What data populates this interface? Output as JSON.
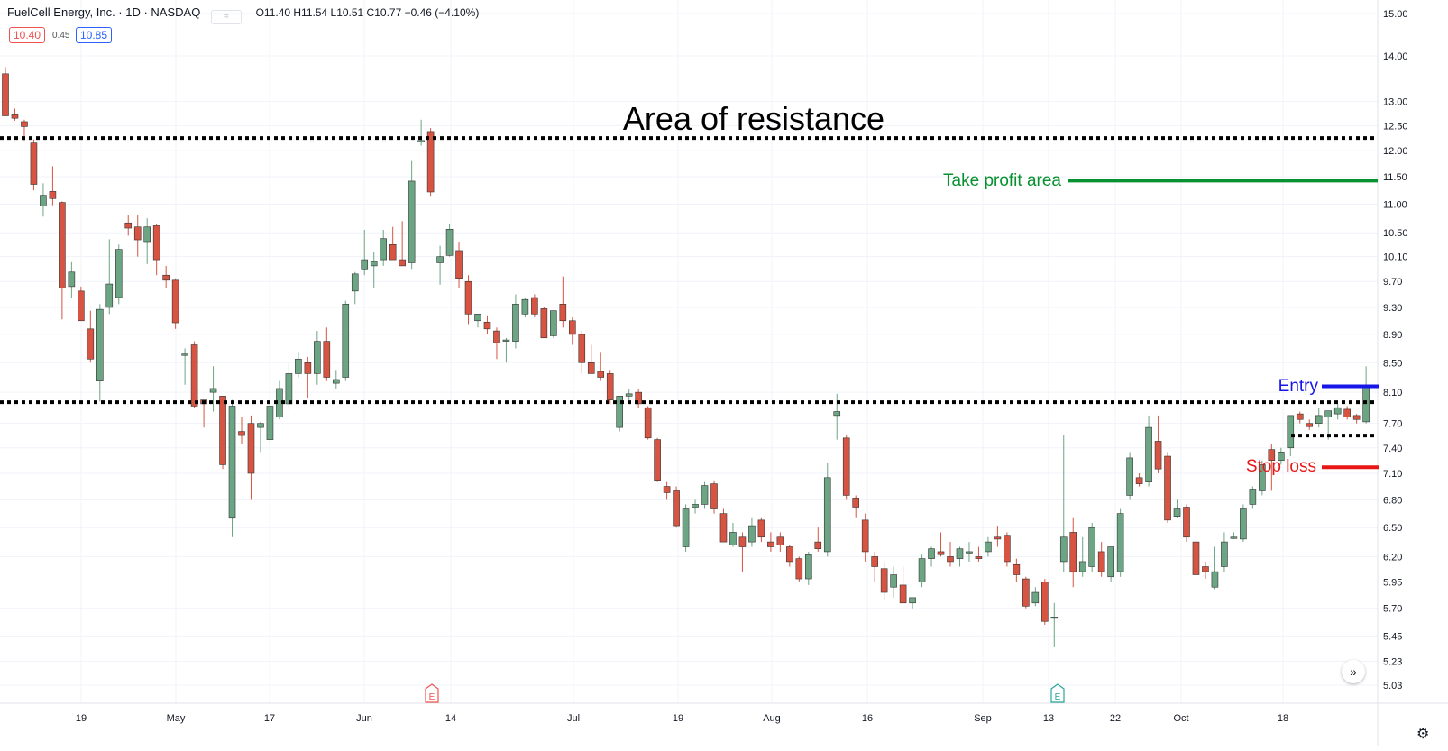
{
  "header": {
    "symbol_title": "FuelCell Energy, Inc. · 1D · NASDAQ",
    "ohlc_text": "O11.40 H11.54 L10.51 C10.77 −0.46 (−4.10%)",
    "bid": "10.40",
    "spread": "0.45",
    "ask": "10.85"
  },
  "annotations": {
    "resistance_label": "Area of resistance",
    "take_profit_label": "Take profit area",
    "entry_label": "Entry",
    "stop_loss_label": "Stop loss"
  },
  "events": {
    "earnings_letter_1": "E",
    "earnings_letter_2": "E"
  },
  "controls": {
    "scroll_glyph": "»",
    "settings_glyph": "⚙"
  },
  "colors": {
    "up": "#6ba583",
    "down": "#d75442",
    "resistance": "#000000",
    "take_profit": "#089130",
    "entry": "#1616e8",
    "stop_loss": "#e81616",
    "grid": "#f0f3fa",
    "earnings_1": "#ef5350",
    "earnings_2": "#26a69a"
  },
  "chart_data": {
    "type": "candlestick",
    "price_axis": {
      "scale": "log",
      "ticks": [
        "15.00",
        "14.00",
        "13.00",
        "12.50",
        "12.00",
        "11.50",
        "11.00",
        "10.50",
        "10.10",
        "9.70",
        "9.30",
        "8.90",
        "8.50",
        "8.10",
        "7.70",
        "7.40",
        "7.10",
        "6.80",
        "6.50",
        "6.20",
        "5.95",
        "5.70",
        "5.45",
        "5.23",
        "5.03"
      ]
    },
    "time_axis_labels": [
      "19",
      "May",
      "17",
      "Jun",
      "14",
      "Jul",
      "19",
      "Aug",
      "16",
      "Sep",
      "13",
      "22",
      "Oct",
      "18"
    ],
    "candles": [
      {
        "o": 13.6,
        "h": 13.75,
        "l": 12.7,
        "c": 12.7
      },
      {
        "o": 12.72,
        "h": 12.85,
        "l": 12.6,
        "c": 12.65
      },
      {
        "o": 12.58,
        "h": 12.62,
        "l": 12.2,
        "c": 12.48
      },
      {
        "o": 12.15,
        "h": 12.22,
        "l": 11.25,
        "c": 11.36
      },
      {
        "o": 10.97,
        "h": 11.38,
        "l": 10.78,
        "c": 11.16
      },
      {
        "o": 11.23,
        "h": 11.7,
        "l": 10.98,
        "c": 11.1
      },
      {
        "o": 11.03,
        "h": 11.05,
        "l": 9.12,
        "c": 9.6
      },
      {
        "o": 9.62,
        "h": 10.01,
        "l": 9.45,
        "c": 9.85
      },
      {
        "o": 9.55,
        "h": 9.62,
        "l": 9.1,
        "c": 9.1
      },
      {
        "o": 8.98,
        "h": 9.25,
        "l": 8.5,
        "c": 8.55
      },
      {
        "o": 8.25,
        "h": 9.35,
        "l": 7.98,
        "c": 9.27
      },
      {
        "o": 9.3,
        "h": 10.39,
        "l": 9.2,
        "c": 9.66
      },
      {
        "o": 9.45,
        "h": 10.3,
        "l": 9.35,
        "c": 10.22
      },
      {
        "o": 10.67,
        "h": 10.8,
        "l": 10.45,
        "c": 10.58
      },
      {
        "o": 10.6,
        "h": 10.8,
        "l": 10.1,
        "c": 10.38
      },
      {
        "o": 10.35,
        "h": 10.75,
        "l": 9.98,
        "c": 10.6
      },
      {
        "o": 10.62,
        "h": 10.65,
        "l": 9.8,
        "c": 10.05
      },
      {
        "o": 9.8,
        "h": 9.95,
        "l": 9.6,
        "c": 9.72
      },
      {
        "o": 9.72,
        "h": 9.75,
        "l": 8.98,
        "c": 9.07
      },
      {
        "o": 8.62,
        "h": 8.7,
        "l": 8.2,
        "c": 8.62
      },
      {
        "o": 8.75,
        "h": 8.8,
        "l": 7.9,
        "c": 7.92
      },
      {
        "o": 8.0,
        "h": 8.0,
        "l": 7.65,
        "c": 7.95
      },
      {
        "o": 8.1,
        "h": 8.45,
        "l": 7.85,
        "c": 8.15
      },
      {
        "o": 8.05,
        "h": 8.05,
        "l": 7.15,
        "c": 7.2
      },
      {
        "o": 6.6,
        "h": 8.0,
        "l": 6.4,
        "c": 7.92
      },
      {
        "o": 7.6,
        "h": 7.78,
        "l": 7.45,
        "c": 7.55
      },
      {
        "o": 7.7,
        "h": 7.8,
        "l": 6.8,
        "c": 7.1
      },
      {
        "o": 7.65,
        "h": 7.72,
        "l": 7.35,
        "c": 7.7
      },
      {
        "o": 7.5,
        "h": 7.98,
        "l": 7.45,
        "c": 7.92
      },
      {
        "o": 7.78,
        "h": 8.25,
        "l": 7.75,
        "c": 8.15
      },
      {
        "o": 7.95,
        "h": 8.5,
        "l": 7.88,
        "c": 8.35
      },
      {
        "o": 8.35,
        "h": 8.65,
        "l": 8.3,
        "c": 8.55
      },
      {
        "o": 8.5,
        "h": 8.58,
        "l": 8.02,
        "c": 8.35
      },
      {
        "o": 8.35,
        "h": 8.95,
        "l": 8.2,
        "c": 8.8
      },
      {
        "o": 8.8,
        "h": 9.0,
        "l": 8.25,
        "c": 8.3
      },
      {
        "o": 8.22,
        "h": 8.4,
        "l": 8.15,
        "c": 8.27
      },
      {
        "o": 8.3,
        "h": 9.4,
        "l": 8.25,
        "c": 9.35
      },
      {
        "o": 9.55,
        "h": 9.85,
        "l": 9.35,
        "c": 9.82
      },
      {
        "o": 9.9,
        "h": 10.55,
        "l": 9.8,
        "c": 10.05
      },
      {
        "o": 9.95,
        "h": 10.18,
        "l": 9.6,
        "c": 10.02
      },
      {
        "o": 10.05,
        "h": 10.55,
        "l": 9.95,
        "c": 10.4
      },
      {
        "o": 10.3,
        "h": 10.6,
        "l": 10.1,
        "c": 10.05
      },
      {
        "o": 10.05,
        "h": 10.7,
        "l": 9.95,
        "c": 9.95
      },
      {
        "o": 10.0,
        "h": 11.8,
        "l": 9.9,
        "c": 11.42
      },
      {
        "o": 12.2,
        "h": 12.62,
        "l": 12.1,
        "c": 12.2
      },
      {
        "o": 12.38,
        "h": 12.45,
        "l": 11.15,
        "c": 11.22
      },
      {
        "o": 10.0,
        "h": 10.28,
        "l": 9.65,
        "c": 10.1
      },
      {
        "o": 10.12,
        "h": 10.65,
        "l": 10.1,
        "c": 10.56
      },
      {
        "o": 10.2,
        "h": 10.35,
        "l": 9.6,
        "c": 9.75
      },
      {
        "o": 9.7,
        "h": 9.8,
        "l": 9.05,
        "c": 9.2
      },
      {
        "o": 9.1,
        "h": 9.2,
        "l": 9.0,
        "c": 9.2
      },
      {
        "o": 9.08,
        "h": 9.18,
        "l": 8.9,
        "c": 8.98
      },
      {
        "o": 8.95,
        "h": 9.0,
        "l": 8.55,
        "c": 8.78
      },
      {
        "o": 8.82,
        "h": 8.85,
        "l": 8.5,
        "c": 8.82
      },
      {
        "o": 8.8,
        "h": 9.5,
        "l": 8.7,
        "c": 9.35
      },
      {
        "o": 9.2,
        "h": 9.45,
        "l": 9.15,
        "c": 9.42
      },
      {
        "o": 9.45,
        "h": 9.5,
        "l": 9.15,
        "c": 9.2
      },
      {
        "o": 9.28,
        "h": 9.3,
        "l": 8.85,
        "c": 8.85
      },
      {
        "o": 8.88,
        "h": 9.25,
        "l": 8.85,
        "c": 9.25
      },
      {
        "o": 9.35,
        "h": 9.78,
        "l": 9.0,
        "c": 9.1
      },
      {
        "o": 9.1,
        "h": 9.15,
        "l": 8.75,
        "c": 8.9
      },
      {
        "o": 8.9,
        "h": 8.95,
        "l": 8.35,
        "c": 8.5
      },
      {
        "o": 8.5,
        "h": 8.75,
        "l": 8.35,
        "c": 8.35
      },
      {
        "o": 8.38,
        "h": 8.65,
        "l": 8.25,
        "c": 8.3
      },
      {
        "o": 8.35,
        "h": 8.4,
        "l": 7.95,
        "c": 8.0
      },
      {
        "o": 7.65,
        "h": 8.05,
        "l": 7.6,
        "c": 8.05
      },
      {
        "o": 8.05,
        "h": 8.15,
        "l": 7.95,
        "c": 8.08
      },
      {
        "o": 8.1,
        "h": 8.15,
        "l": 7.9,
        "c": 7.95
      },
      {
        "o": 7.9,
        "h": 7.92,
        "l": 7.5,
        "c": 7.52
      },
      {
        "o": 7.5,
        "h": 7.52,
        "l": 7.0,
        "c": 7.02
      },
      {
        "o": 6.95,
        "h": 7.0,
        "l": 6.8,
        "c": 6.88
      },
      {
        "o": 6.9,
        "h": 6.95,
        "l": 6.5,
        "c": 6.52
      },
      {
        "o": 6.3,
        "h": 6.75,
        "l": 6.25,
        "c": 6.7
      },
      {
        "o": 6.72,
        "h": 6.8,
        "l": 6.65,
        "c": 6.75
      },
      {
        "o": 6.75,
        "h": 7.0,
        "l": 6.7,
        "c": 6.96
      },
      {
        "o": 6.98,
        "h": 7.02,
        "l": 6.65,
        "c": 6.7
      },
      {
        "o": 6.65,
        "h": 6.7,
        "l": 6.35,
        "c": 6.35
      },
      {
        "o": 6.32,
        "h": 6.55,
        "l": 6.3,
        "c": 6.45
      },
      {
        "o": 6.4,
        "h": 6.45,
        "l": 6.05,
        "c": 6.3
      },
      {
        "o": 6.35,
        "h": 6.6,
        "l": 6.3,
        "c": 6.52
      },
      {
        "o": 6.58,
        "h": 6.6,
        "l": 6.35,
        "c": 6.4
      },
      {
        "o": 6.35,
        "h": 6.45,
        "l": 6.25,
        "c": 6.3
      },
      {
        "o": 6.4,
        "h": 6.45,
        "l": 6.25,
        "c": 6.32
      },
      {
        "o": 6.3,
        "h": 6.32,
        "l": 6.1,
        "c": 6.15
      },
      {
        "o": 6.18,
        "h": 6.2,
        "l": 5.95,
        "c": 5.98
      },
      {
        "o": 5.98,
        "h": 6.25,
        "l": 5.92,
        "c": 6.22
      },
      {
        "o": 6.35,
        "h": 6.5,
        "l": 6.25,
        "c": 6.28
      },
      {
        "o": 6.25,
        "h": 7.22,
        "l": 6.2,
        "c": 7.05
      },
      {
        "o": 7.8,
        "h": 8.08,
        "l": 7.5,
        "c": 7.85
      },
      {
        "o": 7.52,
        "h": 7.55,
        "l": 6.8,
        "c": 6.85
      },
      {
        "o": 6.82,
        "h": 6.85,
        "l": 6.6,
        "c": 6.72
      },
      {
        "o": 6.58,
        "h": 6.65,
        "l": 6.15,
        "c": 6.25
      },
      {
        "o": 6.2,
        "h": 6.25,
        "l": 5.95,
        "c": 6.1
      },
      {
        "o": 6.08,
        "h": 6.15,
        "l": 5.78,
        "c": 5.85
      },
      {
        "o": 5.9,
        "h": 6.1,
        "l": 5.8,
        "c": 6.02
      },
      {
        "o": 5.92,
        "h": 6.1,
        "l": 5.8,
        "c": 5.75
      },
      {
        "o": 5.75,
        "h": 5.8,
        "l": 5.7,
        "c": 5.8
      },
      {
        "o": 5.95,
        "h": 6.22,
        "l": 5.9,
        "c": 6.18
      },
      {
        "o": 6.18,
        "h": 6.3,
        "l": 6.1,
        "c": 6.28
      },
      {
        "o": 6.25,
        "h": 6.45,
        "l": 6.2,
        "c": 6.22
      },
      {
        "o": 6.2,
        "h": 6.35,
        "l": 6.1,
        "c": 6.15
      },
      {
        "o": 6.18,
        "h": 6.3,
        "l": 6.1,
        "c": 6.28
      },
      {
        "o": 6.25,
        "h": 6.35,
        "l": 6.15,
        "c": 6.25
      },
      {
        "o": 6.2,
        "h": 6.3,
        "l": 6.15,
        "c": 6.18
      },
      {
        "o": 6.25,
        "h": 6.4,
        "l": 6.2,
        "c": 6.35
      },
      {
        "o": 6.4,
        "h": 6.52,
        "l": 6.3,
        "c": 6.38
      },
      {
        "o": 6.42,
        "h": 6.45,
        "l": 6.1,
        "c": 6.15
      },
      {
        "o": 6.12,
        "h": 6.18,
        "l": 5.95,
        "c": 6.02
      },
      {
        "o": 5.98,
        "h": 6.0,
        "l": 5.7,
        "c": 5.72
      },
      {
        "o": 5.75,
        "h": 5.9,
        "l": 5.72,
        "c": 5.85
      },
      {
        "o": 5.95,
        "h": 5.98,
        "l": 5.55,
        "c": 5.58
      },
      {
        "o": 5.62,
        "h": 5.75,
        "l": 5.35,
        "c": 5.62
      },
      {
        "o": 6.15,
        "h": 7.55,
        "l": 6.05,
        "c": 6.4
      },
      {
        "o": 6.45,
        "h": 6.6,
        "l": 5.9,
        "c": 6.05
      },
      {
        "o": 6.05,
        "h": 6.4,
        "l": 6.0,
        "c": 6.15
      },
      {
        "o": 6.1,
        "h": 6.55,
        "l": 6.05,
        "c": 6.5
      },
      {
        "o": 6.25,
        "h": 6.35,
        "l": 6.0,
        "c": 6.05
      },
      {
        "o": 6.0,
        "h": 6.3,
        "l": 5.95,
        "c": 6.3
      },
      {
        "o": 6.05,
        "h": 6.7,
        "l": 6.0,
        "c": 6.65
      },
      {
        "o": 6.85,
        "h": 7.35,
        "l": 6.8,
        "c": 7.28
      },
      {
        "o": 7.05,
        "h": 7.1,
        "l": 6.95,
        "c": 6.98
      },
      {
        "o": 7.0,
        "h": 7.8,
        "l": 6.95,
        "c": 7.65
      },
      {
        "o": 7.48,
        "h": 7.8,
        "l": 7.1,
        "c": 7.15
      },
      {
        "o": 7.3,
        "h": 7.35,
        "l": 6.55,
        "c": 6.58
      },
      {
        "o": 6.62,
        "h": 6.8,
        "l": 6.6,
        "c": 6.7
      },
      {
        "o": 6.72,
        "h": 6.75,
        "l": 6.35,
        "c": 6.4
      },
      {
        "o": 6.35,
        "h": 6.4,
        "l": 6.0,
        "c": 6.02
      },
      {
        "o": 6.1,
        "h": 6.15,
        "l": 5.98,
        "c": 6.05
      },
      {
        "o": 5.9,
        "h": 6.3,
        "l": 5.88,
        "c": 6.05
      },
      {
        "o": 6.1,
        "h": 6.45,
        "l": 6.05,
        "c": 6.35
      },
      {
        "o": 6.4,
        "h": 6.45,
        "l": 6.38,
        "c": 6.4
      },
      {
        "o": 6.38,
        "h": 6.75,
        "l": 6.35,
        "c": 6.7
      },
      {
        "o": 6.75,
        "h": 6.95,
        "l": 6.7,
        "c": 6.92
      },
      {
        "o": 6.9,
        "h": 7.25,
        "l": 6.85,
        "c": 7.2
      },
      {
        "o": 7.38,
        "h": 7.45,
        "l": 6.9,
        "c": 7.25
      },
      {
        "o": 7.25,
        "h": 7.4,
        "l": 7.2,
        "c": 7.35
      },
      {
        "o": 7.4,
        "h": 7.8,
        "l": 7.3,
        "c": 7.8
      },
      {
        "o": 7.82,
        "h": 7.85,
        "l": 7.7,
        "c": 7.75
      },
      {
        "o": 7.7,
        "h": 7.75,
        "l": 7.62,
        "c": 7.66
      },
      {
        "o": 7.7,
        "h": 7.9,
        "l": 7.65,
        "c": 7.8
      },
      {
        "o": 7.78,
        "h": 7.85,
        "l": 7.5,
        "c": 7.86
      },
      {
        "o": 7.82,
        "h": 7.95,
        "l": 7.75,
        "c": 7.9
      },
      {
        "o": 7.88,
        "h": 7.92,
        "l": 7.75,
        "c": 7.78
      },
      {
        "o": 7.8,
        "h": 7.82,
        "l": 7.7,
        "c": 7.75
      },
      {
        "o": 7.72,
        "h": 8.45,
        "l": 7.7,
        "c": 8.18
      }
    ],
    "levels": [
      {
        "name": "resistance",
        "price": 12.25,
        "style": "dotted"
      },
      {
        "name": "support",
        "price": 7.97,
        "style": "dotted"
      },
      {
        "name": "take-profit",
        "price": 11.43,
        "style": "solid"
      },
      {
        "name": "entry",
        "price": 8.18,
        "style": "solid"
      },
      {
        "name": "stop-loss",
        "price": 7.17,
        "style": "solid"
      },
      {
        "name": "consolidation-low",
        "price": 7.55,
        "style": "dotted"
      }
    ]
  }
}
